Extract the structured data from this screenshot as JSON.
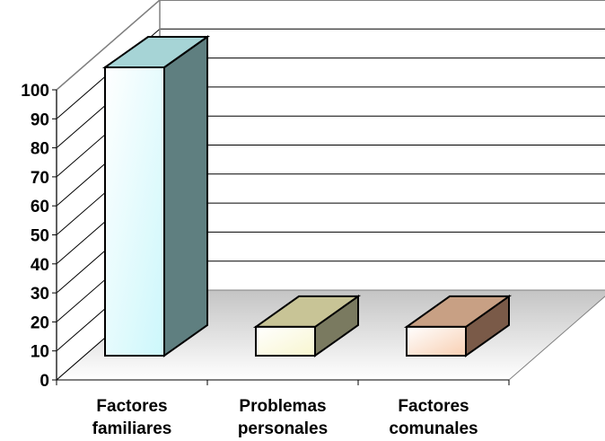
{
  "chart_data": {
    "type": "bar",
    "categories": [
      [
        "Factores",
        "familiares"
      ],
      [
        "Problemas",
        "personales"
      ],
      [
        "Factores",
        "comunales"
      ]
    ],
    "values": [
      100,
      10,
      10
    ],
    "ylim": [
      0,
      100
    ],
    "yticks": [
      "0",
      "10",
      "20",
      "30",
      "40",
      "50",
      "60",
      "70",
      "80",
      "90",
      "100"
    ],
    "grid": true,
    "three_d": true,
    "colors": {
      "bars": [
        {
          "front": "#ccf7fb",
          "side": "#5f7f80",
          "top": "#a6d4d6"
        },
        {
          "front": "#f8f6cf",
          "side": "#7a7a60",
          "top": "#c8c496"
        },
        {
          "front": "#f8cfb2",
          "side": "#7a5a48",
          "top": "#c8a084"
        }
      ],
      "floor": "#d7d7d7",
      "grid": "#000000"
    }
  }
}
